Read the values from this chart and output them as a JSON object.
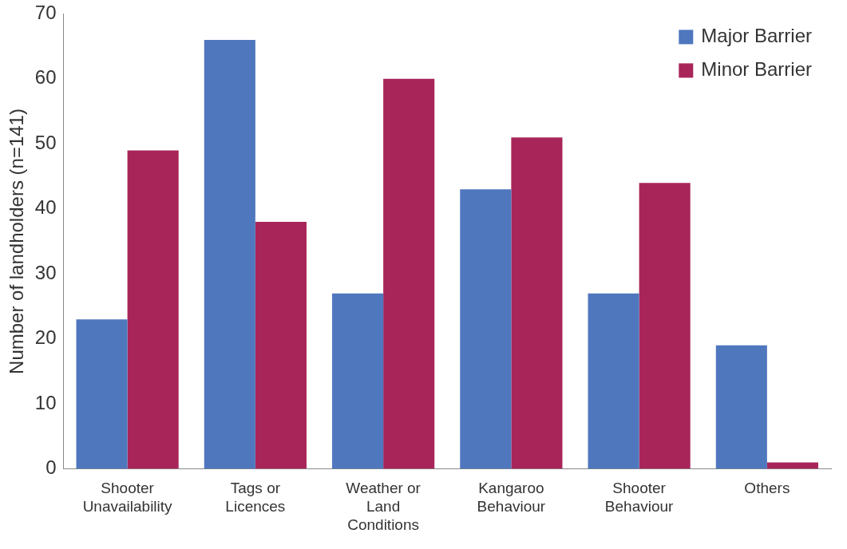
{
  "chart_data": {
    "type": "bar",
    "ylabel": "Number of landholders (n=141)",
    "categories": [
      "Shooter\nUnavailability",
      "Tags or\nLicences",
      "Weather or\nLand\nConditions",
      "Kangaroo\nBehaviour",
      "Shooter\nBehaviour",
      "Others"
    ],
    "series": [
      {
        "name": "Major Barrier",
        "color": "#4f77be",
        "values": [
          23,
          66,
          27,
          43,
          27,
          19
        ]
      },
      {
        "name": "Minor Barrier",
        "color": "#a8255a",
        "values": [
          49,
          38,
          60,
          51,
          44,
          1
        ]
      }
    ],
    "ylim": [
      0,
      70
    ],
    "yticks": [
      0,
      10,
      20,
      30,
      40,
      50,
      60,
      70
    ],
    "grid": false,
    "legend": "top right"
  }
}
